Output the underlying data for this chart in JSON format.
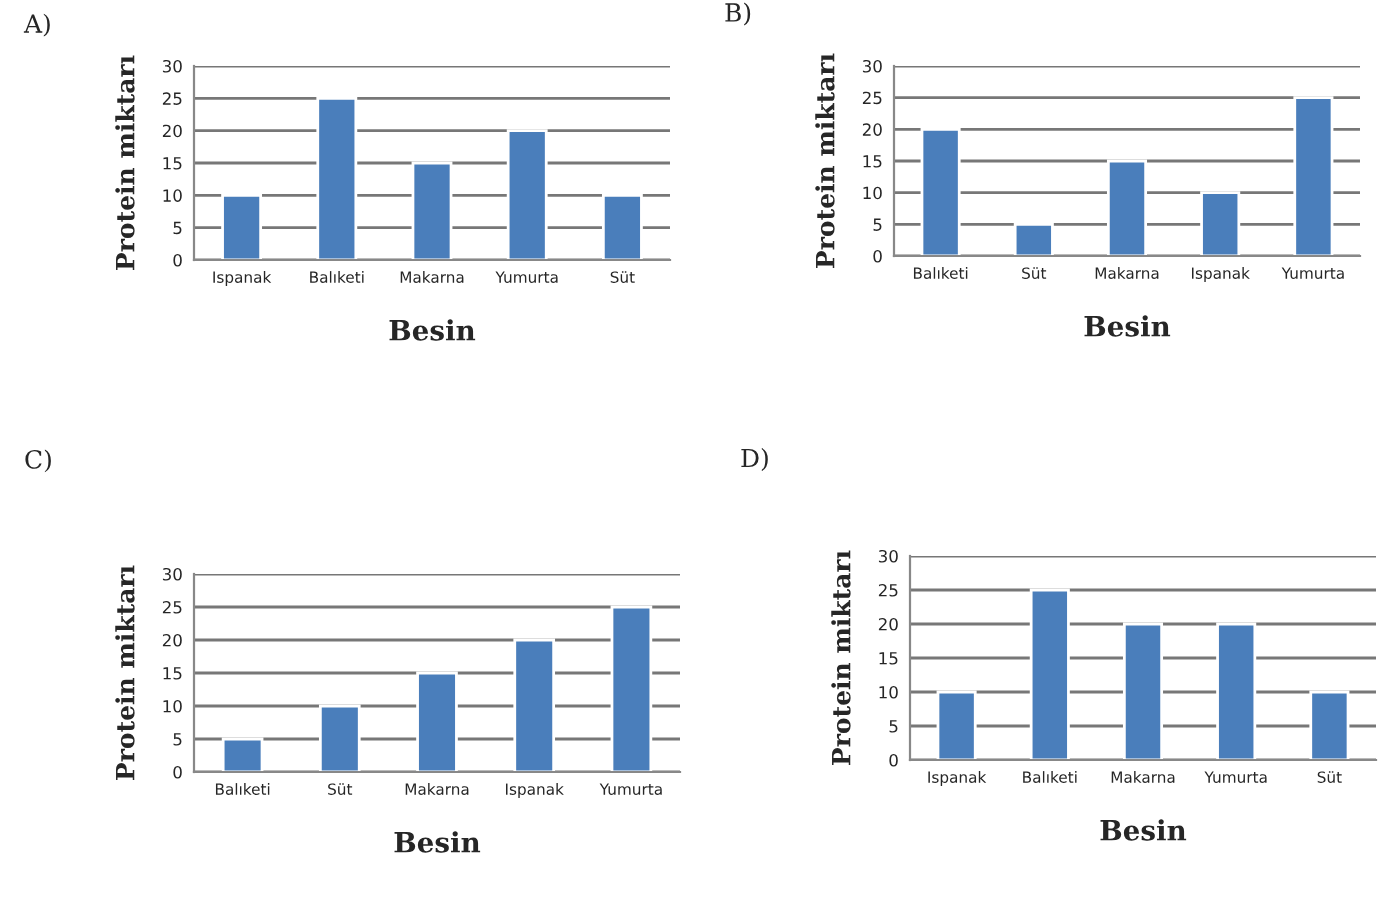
{
  "chart_data": [
    {
      "type": "bar",
      "title": "A)",
      "xlabel": "Besin",
      "ylabel": "Protein miktarı",
      "categories": [
        "Ispanak",
        "Balıketi",
        "Makarna",
        "Yumurta",
        "Süt"
      ],
      "values": [
        10,
        25,
        15,
        20,
        10
      ],
      "color": "#4a7ebb",
      "ylim": [
        0,
        30
      ],
      "yticks": [
        0,
        5,
        10,
        15,
        20,
        25,
        30
      ],
      "grid": "y"
    },
    {
      "type": "bar",
      "title": "B)",
      "xlabel": "Besin",
      "ylabel": "Protein miktarı",
      "categories": [
        "Balıketi",
        "Süt",
        "Makarna",
        "Ispanak",
        "Yumurta"
      ],
      "values": [
        20,
        5,
        15,
        10,
        25
      ],
      "color": "#4a7ebb",
      "ylim": [
        0,
        30
      ],
      "yticks": [
        0,
        5,
        10,
        15,
        20,
        25,
        30
      ],
      "grid": "y"
    },
    {
      "type": "bar",
      "title": "C)",
      "xlabel": "Besin",
      "ylabel": "Protein miktarı",
      "categories": [
        "Balıketi",
        "Süt",
        "Makarna",
        "Ispanak",
        "Yumurta"
      ],
      "values": [
        5,
        10,
        15,
        20,
        25
      ],
      "color": "#4a7ebb",
      "ylim": [
        0,
        30
      ],
      "yticks": [
        0,
        5,
        10,
        15,
        20,
        25,
        30
      ],
      "grid": "y"
    },
    {
      "type": "bar",
      "title": "D)",
      "xlabel": "Besin",
      "ylabel": "Protein miktarı",
      "categories": [
        "Ispanak",
        "Balıketi",
        "Makarna",
        "Yumurta",
        "Süt"
      ],
      "values": [
        10,
        25,
        20,
        20,
        10
      ],
      "color": "#4a7ebb",
      "ylim": [
        0,
        30
      ],
      "yticks": [
        0,
        5,
        10,
        15,
        20,
        25,
        30
      ],
      "grid": "y"
    }
  ]
}
